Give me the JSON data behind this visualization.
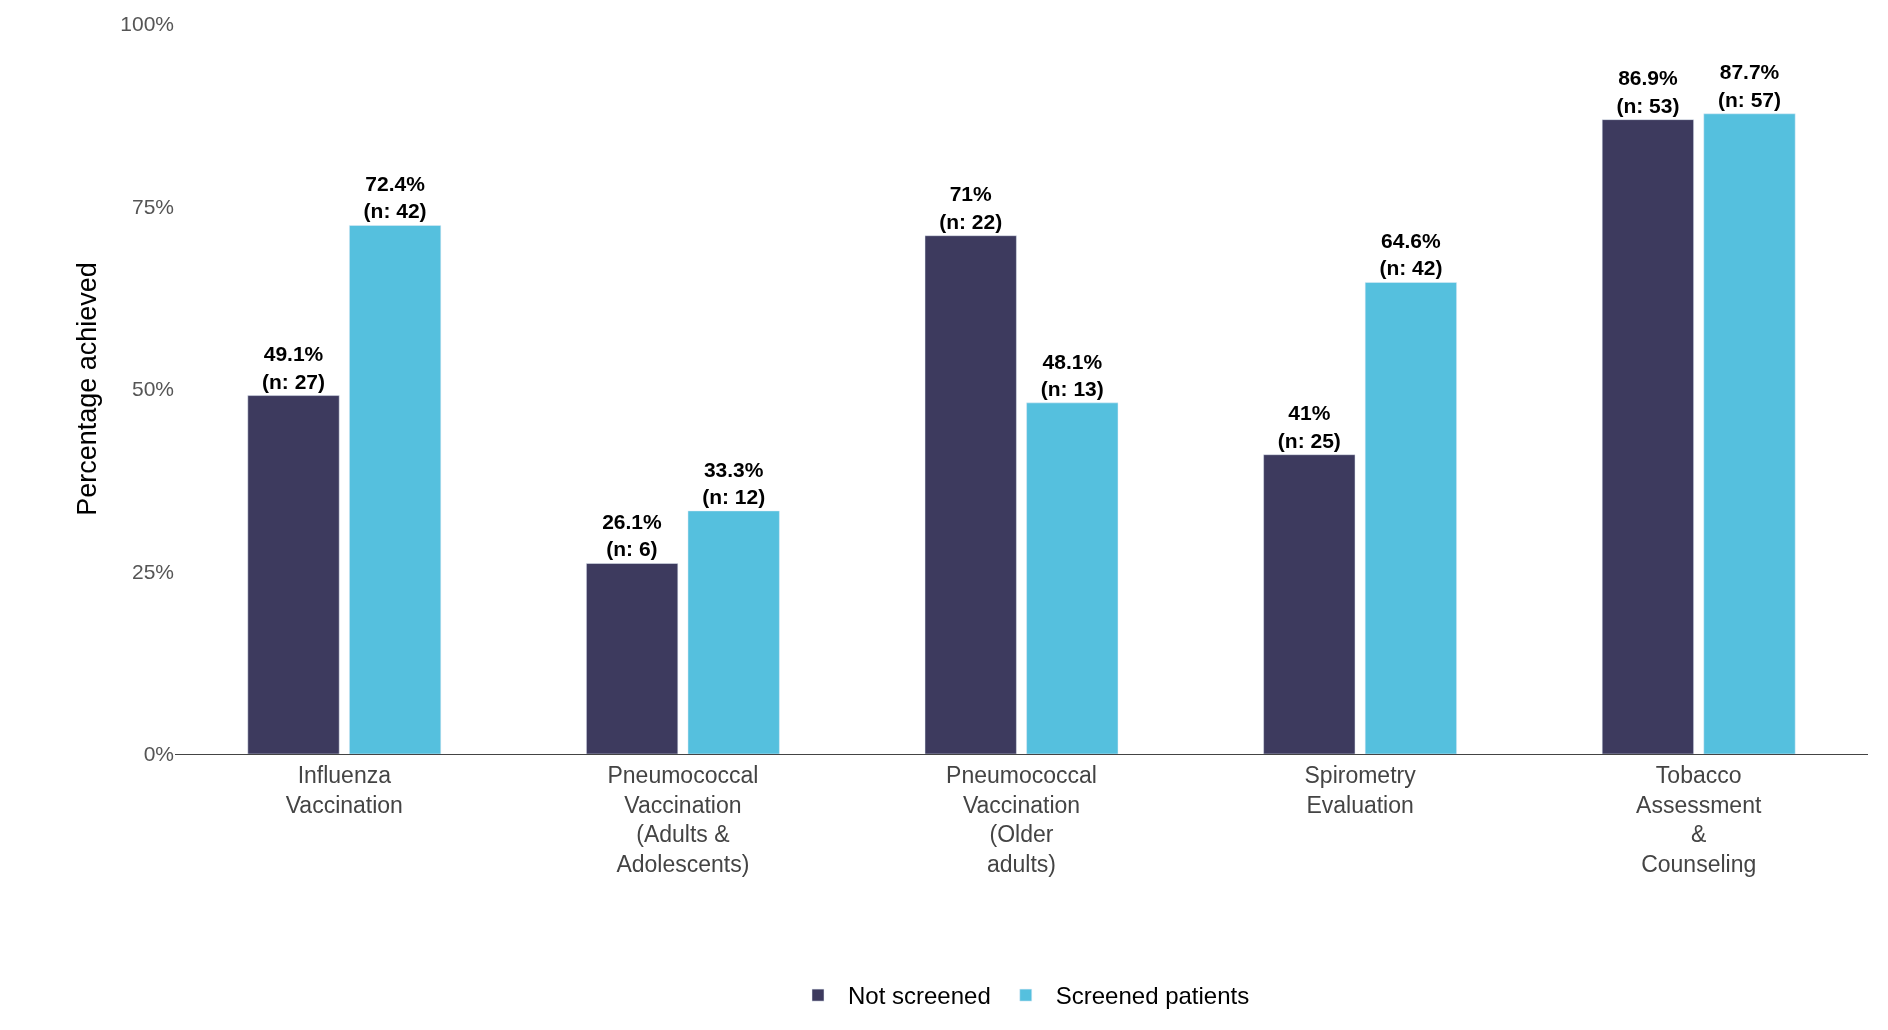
{
  "chart_data": {
    "type": "bar",
    "ylabel": "Percentage achieved",
    "categories": [
      "Influenza\nVaccination",
      "Pneumococcal\nVaccination\n(Adults &\nAdolescents)",
      "Pneumococcal\nVaccination\n(Older\nadults)",
      "Spirometry\nEvaluation",
      "Tobacco\nAssessment\n&\nCounseling"
    ],
    "series": [
      {
        "name": "Not screened",
        "color": "#3d3a5e",
        "values": [
          49.1,
          26.1,
          71,
          41,
          86.9
        ],
        "value_labels": [
          "49.1%\n(n: 27)",
          "26.1%\n(n: 6)",
          "71%\n(n: 22)",
          "41%\n(n: 25)",
          "86.9%\n(n: 53)"
        ]
      },
      {
        "name": "Screened patients",
        "color": "#55c0de",
        "values": [
          72.4,
          33.3,
          48.1,
          64.6,
          87.7
        ],
        "value_labels": [
          "72.4%\n(n: 42)",
          "33.3%\n(n: 12)",
          "48.1%\n(n: 13)",
          "64.6%\n(n: 42)",
          "87.7%\n(n: 57)"
        ]
      }
    ],
    "ylim": [
      0,
      100
    ],
    "yticks": [
      {
        "value": 0,
        "label": "0%"
      },
      {
        "value": 25,
        "label": "25%"
      },
      {
        "value": 50,
        "label": "50%"
      },
      {
        "value": 75,
        "label": "75%"
      },
      {
        "value": 100,
        "label": "100%"
      }
    ],
    "legend": "bottom"
  }
}
